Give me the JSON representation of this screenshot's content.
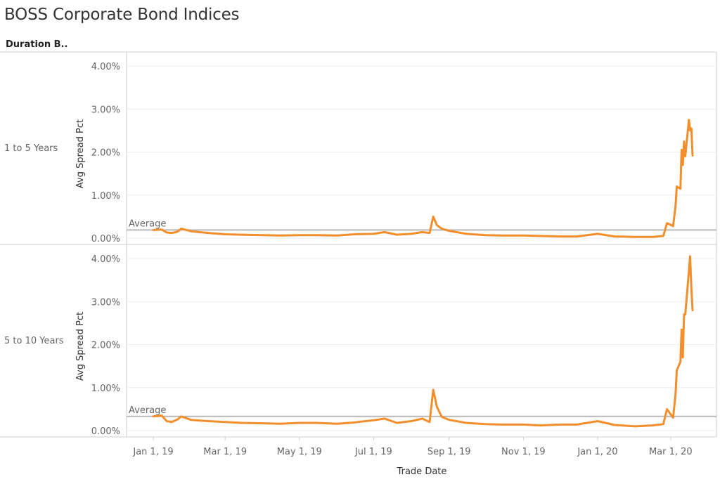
{
  "title": "BOSS Corporate Bond Indices",
  "facet_header": "Duration B..",
  "colors": {
    "line": "#F28E2B",
    "reference_line": "#b8b8b8",
    "grid": "#eeeeee",
    "divider": "#cccccc",
    "text": "#666666"
  },
  "chart_data": {
    "type": "line",
    "title": "BOSS Corporate Bond Indices",
    "xlabel": "Trade Date",
    "ylabel": "Avg Spread Pct",
    "x_ticks": [
      "Jan 1, 19",
      "Mar 1, 19",
      "May 1, 19",
      "Jul 1, 19",
      "Sep 1, 19",
      "Nov 1, 19",
      "Jan 1, 20",
      "Mar 1, 20"
    ],
    "x_range": [
      "2019-01-01",
      "2020-03-19"
    ],
    "y_ticks": [
      "0.00%",
      "1.00%",
      "2.00%",
      "3.00%",
      "4.00%"
    ],
    "grid": true,
    "panels": [
      {
        "label": "1 to 5 Years",
        "ylim": [
          0,
          4.3
        ],
        "reference_line": {
          "label": "Average",
          "value": 0.19
        },
        "series": [
          {
            "x": [
              "2019-01-01",
              "2019-01-08",
              "2019-01-12",
              "2019-01-16",
              "2019-01-21",
              "2019-01-24",
              "2019-02-01",
              "2019-02-15",
              "2019-03-01",
              "2019-03-15",
              "2019-04-01",
              "2019-04-15",
              "2019-05-01",
              "2019-05-15",
              "2019-06-01",
              "2019-06-15",
              "2019-07-01",
              "2019-07-10",
              "2019-07-20",
              "2019-08-01",
              "2019-08-10",
              "2019-08-16",
              "2019-08-19",
              "2019-08-22",
              "2019-08-26",
              "2019-09-01",
              "2019-09-15",
              "2019-10-01",
              "2019-10-15",
              "2019-11-01",
              "2019-11-15",
              "2019-12-01",
              "2019-12-15",
              "2020-01-01",
              "2020-01-15",
              "2020-02-01",
              "2020-02-15",
              "2020-02-24",
              "2020-02-27",
              "2020-03-03",
              "2020-03-05",
              "2020-03-06",
              "2020-03-09",
              "2020-03-10",
              "2020-03-11",
              "2020-03-12",
              "2020-03-13",
              "2020-03-16",
              "2020-03-17",
              "2020-03-18",
              "2020-03-19"
            ],
            "values": [
              0.19,
              0.2,
              0.13,
              0.12,
              0.15,
              0.22,
              0.16,
              0.12,
              0.09,
              0.08,
              0.07,
              0.06,
              0.07,
              0.07,
              0.06,
              0.09,
              0.1,
              0.14,
              0.08,
              0.1,
              0.14,
              0.12,
              0.5,
              0.3,
              0.22,
              0.17,
              0.1,
              0.07,
              0.06,
              0.06,
              0.05,
              0.04,
              0.04,
              0.1,
              0.04,
              0.03,
              0.03,
              0.05,
              0.35,
              0.28,
              0.75,
              1.2,
              1.15,
              2.05,
              1.7,
              2.25,
              1.9,
              2.75,
              2.5,
              2.55,
              1.92
            ]
          }
        ]
      },
      {
        "label": "5 to 10 Years",
        "ylim": [
          0,
          4.3
        ],
        "reference_line": {
          "label": "Average",
          "value": 0.33
        },
        "series": [
          {
            "x": [
              "2019-01-01",
              "2019-01-08",
              "2019-01-12",
              "2019-01-16",
              "2019-01-21",
              "2019-01-24",
              "2019-02-01",
              "2019-02-15",
              "2019-03-01",
              "2019-03-15",
              "2019-04-01",
              "2019-04-15",
              "2019-05-01",
              "2019-05-15",
              "2019-06-01",
              "2019-06-15",
              "2019-07-01",
              "2019-07-10",
              "2019-07-20",
              "2019-08-01",
              "2019-08-10",
              "2019-08-16",
              "2019-08-19",
              "2019-08-22",
              "2019-08-26",
              "2019-09-01",
              "2019-09-15",
              "2019-10-01",
              "2019-10-15",
              "2019-11-01",
              "2019-11-15",
              "2019-12-01",
              "2019-12-15",
              "2020-01-01",
              "2020-01-15",
              "2020-02-01",
              "2020-02-15",
              "2020-02-24",
              "2020-02-27",
              "2020-03-03",
              "2020-03-05",
              "2020-03-06",
              "2020-03-09",
              "2020-03-10",
              "2020-03-11",
              "2020-03-12",
              "2020-03-13",
              "2020-03-16",
              "2020-03-17",
              "2020-03-18",
              "2020-03-19"
            ],
            "values": [
              0.33,
              0.35,
              0.22,
              0.2,
              0.26,
              0.33,
              0.25,
              0.22,
              0.2,
              0.18,
              0.17,
              0.16,
              0.18,
              0.18,
              0.16,
              0.19,
              0.24,
              0.28,
              0.18,
              0.22,
              0.28,
              0.2,
              0.95,
              0.55,
              0.32,
              0.25,
              0.18,
              0.15,
              0.14,
              0.14,
              0.12,
              0.14,
              0.14,
              0.22,
              0.13,
              0.1,
              0.12,
              0.15,
              0.5,
              0.3,
              0.85,
              1.4,
              1.6,
              2.35,
              1.7,
              2.7,
              2.7,
              3.7,
              4.05,
              3.3,
              2.8
            ]
          }
        ]
      }
    ]
  }
}
